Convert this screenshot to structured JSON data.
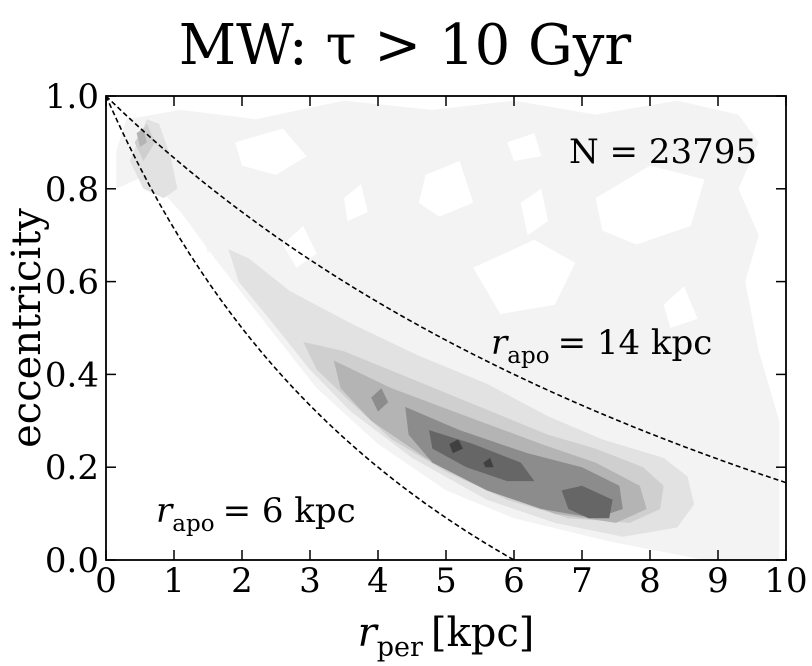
{
  "chart_data": {
    "type": "heatmap",
    "title": "MW: τ > 10 Gyr",
    "xlabel": "r_per [kpc]",
    "xlabel_main": "r",
    "xlabel_sub": "per",
    "xlabel_unit": "[kpc]",
    "ylabel": "eccentricity",
    "xlim": [
      0,
      10
    ],
    "ylim": [
      0,
      1.0
    ],
    "x_ticks": [
      0,
      1,
      2,
      3,
      4,
      5,
      6,
      7,
      8,
      9,
      10
    ],
    "x_tick_labels": [
      "0",
      "1",
      "2",
      "3",
      "4",
      "5",
      "6",
      "7",
      "8",
      "9",
      "10"
    ],
    "y_ticks": [
      0,
      0.2,
      0.4,
      0.6,
      0.8,
      1.0
    ],
    "y_tick_labels": [
      "0.0",
      "0.2",
      "0.4",
      "0.6",
      "0.8",
      "1.0"
    ],
    "grid": false,
    "annotations": {
      "count": "N = 23795",
      "curve_outer_label_main": "r",
      "curve_outer_label_sub": "apo",
      "curve_outer_label_value": "= 14 kpc",
      "curve_inner_label_main": "r",
      "curve_inner_label_sub": "apo",
      "curve_inner_label_value": "= 6 kpc"
    },
    "curves": [
      {
        "r_apo": 14,
        "style": "dashed",
        "color": "#000000"
      },
      {
        "r_apo": 6,
        "style": "dashed",
        "color": "#000000"
      }
    ],
    "density_levels": [
      {
        "level": 1,
        "color": "#f3f3f3",
        "polygons": [
          [
            [
              0.15,
              0.88
            ],
            [
              0.3,
              0.95
            ],
            [
              1.1,
              0.97
            ],
            [
              2.2,
              0.95
            ],
            [
              3.5,
              0.99
            ],
            [
              4.8,
              0.97
            ],
            [
              6.0,
              0.99
            ],
            [
              7.2,
              0.96
            ],
            [
              8.4,
              0.99
            ],
            [
              9.3,
              0.96
            ],
            [
              9.6,
              0.9
            ],
            [
              9.3,
              0.8
            ],
            [
              9.6,
              0.7
            ],
            [
              9.4,
              0.6
            ],
            [
              9.6,
              0.45
            ],
            [
              9.9,
              0.3
            ],
            [
              9.9,
              0.0
            ],
            [
              8.8,
              0.0
            ],
            [
              7.4,
              0.04
            ],
            [
              6.0,
              0.09
            ],
            [
              5.0,
              0.15
            ],
            [
              4.0,
              0.25
            ],
            [
              3.1,
              0.37
            ],
            [
              2.4,
              0.5
            ],
            [
              1.6,
              0.65
            ],
            [
              1.1,
              0.75
            ],
            [
              0.6,
              0.83
            ],
            [
              0.15,
              0.8
            ]
          ],
          [
            [
              1.45,
              0.69
            ],
            [
              1.52,
              0.73
            ],
            [
              1.58,
              0.7
            ],
            [
              1.5,
              0.66
            ]
          ]
        ],
        "holes": [
          [
            [
              1.9,
              0.9
            ],
            [
              2.6,
              0.93
            ],
            [
              2.95,
              0.87
            ],
            [
              2.5,
              0.83
            ],
            [
              2.0,
              0.85
            ]
          ],
          [
            [
              3.5,
              0.78
            ],
            [
              3.75,
              0.81
            ],
            [
              3.85,
              0.75
            ],
            [
              3.55,
              0.73
            ]
          ],
          [
            [
              4.7,
              0.83
            ],
            [
              5.2,
              0.86
            ],
            [
              5.4,
              0.77
            ],
            [
              4.9,
              0.74
            ],
            [
              4.6,
              0.77
            ]
          ],
          [
            [
              6.1,
              0.77
            ],
            [
              6.4,
              0.8
            ],
            [
              6.5,
              0.73
            ],
            [
              6.2,
              0.7
            ]
          ],
          [
            [
              5.4,
              0.63
            ],
            [
              6.3,
              0.69
            ],
            [
              6.9,
              0.64
            ],
            [
              6.6,
              0.55
            ],
            [
              5.8,
              0.53
            ]
          ],
          [
            [
              7.2,
              0.78
            ],
            [
              8.0,
              0.85
            ],
            [
              8.8,
              0.82
            ],
            [
              8.6,
              0.72
            ],
            [
              7.8,
              0.68
            ],
            [
              7.3,
              0.71
            ]
          ],
          [
            [
              5.9,
              0.9
            ],
            [
              6.3,
              0.92
            ],
            [
              6.4,
              0.87
            ],
            [
              6.0,
              0.86
            ]
          ],
          [
            [
              8.2,
              0.55
            ],
            [
              8.5,
              0.59
            ],
            [
              8.7,
              0.52
            ],
            [
              8.3,
              0.5
            ]
          ],
          [
            [
              2.6,
              0.68
            ],
            [
              2.9,
              0.72
            ],
            [
              3.1,
              0.66
            ],
            [
              2.8,
              0.63
            ]
          ]
        ]
      },
      {
        "level": 2,
        "color": "#e2e2e2",
        "polygons": [
          [
            [
              0.35,
              0.86
            ],
            [
              0.6,
              0.95
            ],
            [
              0.78,
              0.94
            ],
            [
              0.95,
              0.87
            ],
            [
              1.05,
              0.8
            ],
            [
              0.85,
              0.78
            ],
            [
              0.55,
              0.8
            ]
          ],
          [
            [
              1.8,
              0.67
            ],
            [
              2.1,
              0.65
            ],
            [
              2.7,
              0.58
            ],
            [
              3.6,
              0.51
            ],
            [
              4.6,
              0.44
            ],
            [
              5.6,
              0.38
            ],
            [
              6.5,
              0.31
            ],
            [
              7.3,
              0.26
            ],
            [
              8.2,
              0.22
            ],
            [
              8.55,
              0.18
            ],
            [
              8.65,
              0.12
            ],
            [
              8.4,
              0.07
            ],
            [
              7.6,
              0.05
            ],
            [
              6.6,
              0.08
            ],
            [
              5.6,
              0.13
            ],
            [
              4.5,
              0.22
            ],
            [
              3.6,
              0.32
            ],
            [
              3.0,
              0.41
            ],
            [
              2.4,
              0.52
            ],
            [
              1.95,
              0.6
            ]
          ]
        ]
      },
      {
        "level": 3,
        "color": "#cfcfcf",
        "polygons": [
          [
            [
              0.42,
              0.9
            ],
            [
              0.6,
              0.94
            ],
            [
              0.72,
              0.9
            ],
            [
              0.55,
              0.86
            ]
          ],
          [
            [
              2.9,
              0.47
            ],
            [
              3.5,
              0.45
            ],
            [
              4.5,
              0.39
            ],
            [
              5.5,
              0.33
            ],
            [
              6.5,
              0.27
            ],
            [
              7.2,
              0.24
            ],
            [
              7.9,
              0.2
            ],
            [
              8.2,
              0.16
            ],
            [
              8.15,
              0.11
            ],
            [
              7.7,
              0.08
            ],
            [
              6.8,
              0.09
            ],
            [
              5.9,
              0.13
            ],
            [
              5.0,
              0.19
            ],
            [
              4.2,
              0.26
            ],
            [
              3.6,
              0.34
            ],
            [
              3.1,
              0.41
            ]
          ]
        ]
      },
      {
        "level": 4,
        "color": "#b4b4b4",
        "polygons": [
          [
            [
              0.45,
              0.92
            ],
            [
              0.55,
              0.93
            ],
            [
              0.6,
              0.9
            ],
            [
              0.5,
              0.89
            ]
          ],
          [
            [
              3.35,
              0.43
            ],
            [
              4.2,
              0.37
            ],
            [
              5.3,
              0.31
            ],
            [
              6.4,
              0.25
            ],
            [
              7.2,
              0.21
            ],
            [
              7.85,
              0.16
            ],
            [
              7.95,
              0.11
            ],
            [
              7.5,
              0.08
            ],
            [
              6.6,
              0.1
            ],
            [
              5.7,
              0.15
            ],
            [
              4.7,
              0.22
            ],
            [
              3.9,
              0.3
            ],
            [
              3.45,
              0.37
            ]
          ]
        ]
      },
      {
        "level": 5,
        "color": "#8c8c8c",
        "polygons": [
          [
            [
              3.9,
              0.35
            ],
            [
              4.05,
              0.37
            ],
            [
              4.15,
              0.34
            ],
            [
              4.0,
              0.32
            ]
          ],
          [
            [
              4.4,
              0.33
            ],
            [
              5.2,
              0.28
            ],
            [
              6.2,
              0.23
            ],
            [
              7.0,
              0.2
            ],
            [
              7.55,
              0.16
            ],
            [
              7.6,
              0.11
            ],
            [
              7.2,
              0.09
            ],
            [
              6.4,
              0.11
            ],
            [
              5.6,
              0.15
            ],
            [
              4.8,
              0.21
            ],
            [
              4.45,
              0.27
            ]
          ]
        ]
      },
      {
        "level": 6,
        "color": "#666666",
        "polygons": [
          [
            [
              4.75,
              0.28
            ],
            [
              5.4,
              0.25
            ],
            [
              6.1,
              0.21
            ],
            [
              6.3,
              0.17
            ],
            [
              5.9,
              0.17
            ],
            [
              5.3,
              0.2
            ],
            [
              4.8,
              0.24
            ]
          ],
          [
            [
              6.7,
              0.15
            ],
            [
              7.0,
              0.16
            ],
            [
              7.45,
              0.13
            ],
            [
              7.4,
              0.09
            ],
            [
              7.1,
              0.09
            ],
            [
              6.8,
              0.11
            ]
          ]
        ]
      },
      {
        "level": 7,
        "color": "#404040",
        "polygons": [
          [
            [
              5.05,
              0.25
            ],
            [
              5.18,
              0.26
            ],
            [
              5.25,
              0.24
            ],
            [
              5.1,
              0.23
            ]
          ],
          [
            [
              5.55,
              0.21
            ],
            [
              5.65,
              0.22
            ],
            [
              5.7,
              0.2
            ],
            [
              5.58,
              0.2
            ]
          ]
        ]
      }
    ]
  }
}
